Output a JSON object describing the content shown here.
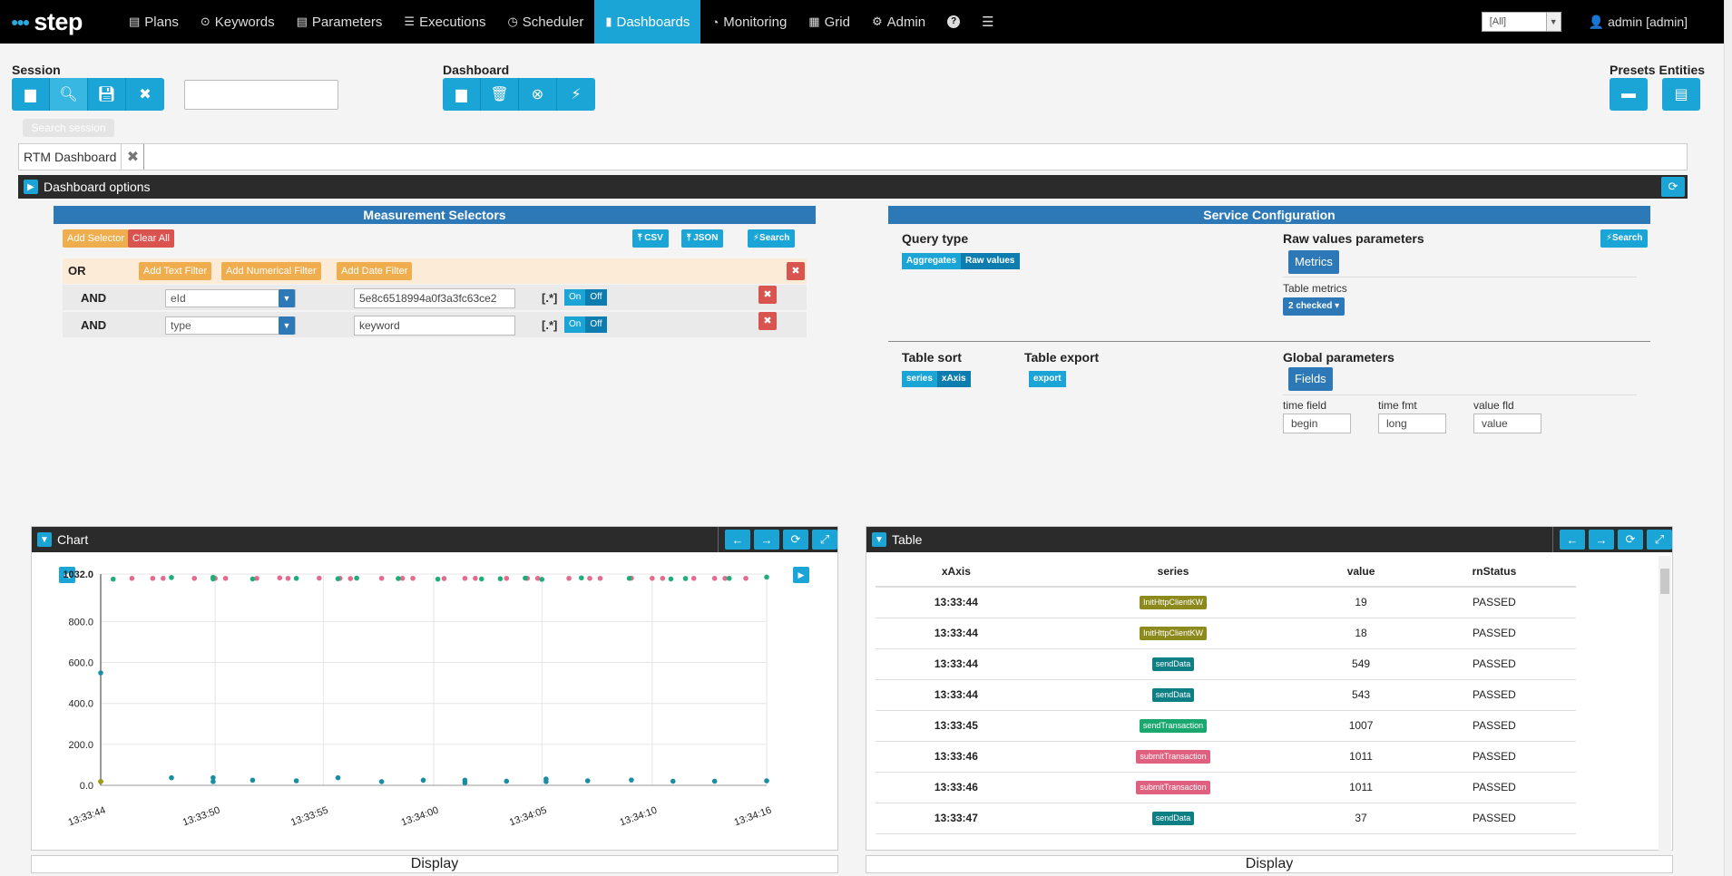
{
  "nav": {
    "logo": "step",
    "items": [
      {
        "label": "Plans",
        "icon": "file-icon",
        "glyph": "▤"
      },
      {
        "label": "Keywords",
        "icon": "target-icon",
        "glyph": "⊙"
      },
      {
        "label": "Parameters",
        "icon": "list-icon",
        "glyph": "▤"
      },
      {
        "label": "Executions",
        "icon": "tasks-icon",
        "glyph": "☰"
      },
      {
        "label": "Scheduler",
        "icon": "clock-icon",
        "glyph": "◷"
      },
      {
        "label": "Dashboards",
        "icon": "bar-chart-icon",
        "glyph": "▮"
      },
      {
        "label": "Monitoring",
        "icon": "dashboard-icon",
        "glyph": "◔"
      },
      {
        "label": "Grid",
        "icon": "grid-icon",
        "glyph": "▦"
      },
      {
        "label": "Admin",
        "icon": "gear-icon",
        "glyph": "⚙"
      }
    ],
    "help_glyph": "?",
    "menu_glyph": "☰",
    "tenant": "[All]",
    "user": "admin [admin]"
  },
  "session": {
    "label": "Session",
    "tooltip": "Search session",
    "input_value": ""
  },
  "dashboard": {
    "label": "Dashboard"
  },
  "presets": {
    "label": "Presets Entities"
  },
  "tab": {
    "label": "RTM Dashboard"
  },
  "options_bar": {
    "label": "Dashboard options"
  },
  "measurement": {
    "title": "Measurement Selectors",
    "add_selector": "Add Selector",
    "clear_all": "Clear All",
    "csv": "CSV",
    "json": "JSON",
    "search": "Search",
    "or_label": "OR",
    "add_text_filter": "Add Text Filter",
    "add_numerical_filter": "Add Numerical Filter",
    "add_date_filter": "Add Date Filter",
    "rows": [
      {
        "op": "AND",
        "field": "eId",
        "value": "5e8c6518994a0f3a3fc63ce2",
        "regex": "[.*]",
        "on": "On",
        "off": "Off"
      },
      {
        "op": "AND",
        "field": "type",
        "value": "keyword",
        "regex": "[.*]",
        "on": "On",
        "off": "Off"
      }
    ]
  },
  "service": {
    "title": "Service Configuration",
    "query_type": "Query type",
    "aggregates": "Aggregates",
    "raw_values": "Raw values",
    "raw_params": "Raw values parameters",
    "search": "Search",
    "metrics": "Metrics",
    "table_metrics": "Table metrics",
    "checked": "2 checked",
    "table_sort": "Table sort",
    "series": "series",
    "xaxis": "xAxis",
    "table_export": "Table export",
    "export": "export",
    "global_params": "Global parameters",
    "fields": "Fields",
    "time_field_label": "time field",
    "time_field": "begin",
    "time_fmt_label": "time fmt",
    "time_fmt": "long",
    "value_fld_label": "value fld",
    "value_fld": "value"
  },
  "chart_widget": {
    "title": "Chart",
    "display": "Display"
  },
  "table_widget": {
    "title": "Table",
    "display": "Display"
  },
  "chart_data": {
    "type": "scatter",
    "title": "",
    "xlabel": "",
    "ylabel": "",
    "ylim": [
      0,
      1032
    ],
    "yticks": [
      "1032.0",
      "800.0",
      "600.0",
      "400.0",
      "200.0",
      "0.0"
    ],
    "xticks": [
      "13:33:44",
      "13:33:50",
      "13:33:55",
      "13:34:00",
      "13:34:05",
      "13:34:10",
      "13:34:16"
    ],
    "xrange": [
      0,
      32
    ],
    "grid": true,
    "series": [
      {
        "color": "#e36b8e",
        "x": [
          1.5,
          4.5,
          7.5,
          10.5,
          13.5,
          16.5,
          19.5,
          22.5,
          25.5,
          28.5,
          31,
          3,
          6,
          9,
          12,
          15,
          18,
          21,
          24,
          27,
          30,
          8.6,
          2.5,
          5.5,
          11.5,
          14.5,
          17.5,
          20.5,
          23.5,
          26.5,
          29.5
        ],
        "y": [
          1011,
          1011,
          1011,
          1012,
          1011,
          1010,
          1011,
          1011,
          1012,
          1011,
          1011,
          1011,
          1011,
          1011,
          1010,
          1011,
          1011,
          1011,
          1011,
          1011,
          1011,
          1013,
          1011,
          1011,
          1011,
          1011,
          1011,
          1011,
          1011,
          1011,
          1011
        ]
      },
      {
        "color": "#1fae7a",
        "x": [
          0.6,
          3.4,
          5.4,
          7.3,
          11.4,
          14.3,
          16.2,
          18.3,
          20.4,
          23.1,
          25.4,
          27.4,
          30.2,
          32,
          5.4,
          9.4,
          12.3,
          19.2,
          21.2,
          28.1
        ],
        "y": [
          1007,
          1015,
          1016,
          1008,
          1009,
          1010,
          1007,
          1008,
          1012,
          1013,
          1011,
          1008,
          1011,
          1017,
          1008,
          1011,
          1012,
          1009,
          1006,
          1010
        ]
      },
      {
        "color": "#198ea3",
        "x": [
          0,
          3.4,
          5.4,
          7.3,
          9.4,
          11.4,
          13.5,
          15.5,
          17.5,
          19.5,
          21.4,
          23.4,
          25.5,
          27.5,
          29.5,
          32,
          5.4,
          17.5,
          21.4
        ],
        "y": [
          549,
          37,
          37,
          25,
          22,
          37,
          18,
          25,
          25,
          20,
          31,
          22,
          26,
          20,
          20,
          22,
          18,
          12,
          18
        ]
      },
      {
        "color": "#9a9a16",
        "x": [
          0,
          0
        ],
        "y": [
          19,
          18
        ]
      }
    ]
  },
  "table_data": {
    "columns": [
      "xAxis",
      "series",
      "value",
      "rnStatus"
    ],
    "rows": [
      {
        "xAxis": "13:33:44",
        "series": "InitHttpClientKW",
        "color": "#8c8a1c",
        "value": "19",
        "status": "PASSED"
      },
      {
        "xAxis": "13:33:44",
        "series": "InitHttpClientKW",
        "color": "#8c8a1c",
        "value": "18",
        "status": "PASSED"
      },
      {
        "xAxis": "13:33:44",
        "series": "sendData",
        "color": "#0f7f86",
        "value": "549",
        "status": "PASSED"
      },
      {
        "xAxis": "13:33:44",
        "series": "sendData",
        "color": "#0f7f86",
        "value": "543",
        "status": "PASSED"
      },
      {
        "xAxis": "13:33:45",
        "series": "sendTransaction",
        "color": "#1aa86e",
        "value": "1007",
        "status": "PASSED"
      },
      {
        "xAxis": "13:33:46",
        "series": "submitTransaction",
        "color": "#e0607f",
        "value": "1011",
        "status": "PASSED"
      },
      {
        "xAxis": "13:33:46",
        "series": "submitTransaction",
        "color": "#e0607f",
        "value": "1011",
        "status": "PASSED"
      },
      {
        "xAxis": "13:33:47",
        "series": "sendData",
        "color": "#0f7f86",
        "value": "37",
        "status": "PASSED"
      }
    ]
  }
}
